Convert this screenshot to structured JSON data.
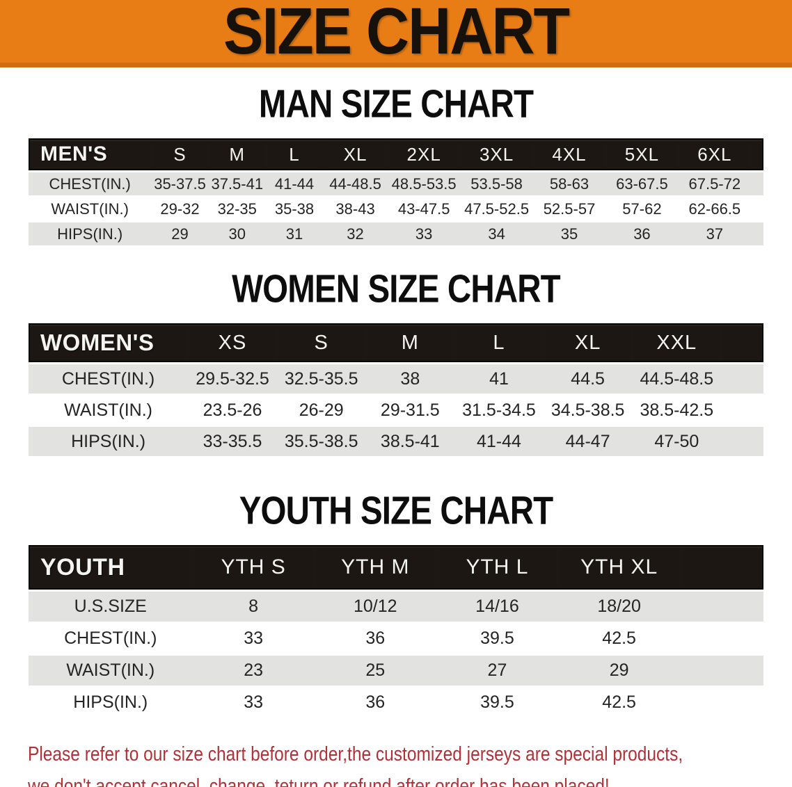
{
  "banner": {
    "title": "SIZE CHART"
  },
  "tables": {
    "men": {
      "title": "MAN SIZE CHART",
      "header": [
        "MEN'S",
        "S",
        "M",
        "L",
        "XL",
        "2XL",
        "3XL",
        "4XL",
        "5XL",
        "6XL"
      ],
      "rows": [
        [
          "CHEST(IN.)",
          "35-37.5",
          "37.5-41",
          "41-44",
          "44-48.5",
          "48.5-53.5",
          "53.5-58",
          "58-63",
          "63-67.5",
          "67.5-72"
        ],
        [
          "WAIST(IN.)",
          "29-32",
          "32-35",
          "35-38",
          "38-43",
          "43-47.5",
          "47.5-52.5",
          "52.5-57",
          "57-62",
          "62-66.5"
        ],
        [
          "HIPS(IN.)",
          "29",
          "30",
          "31",
          "32",
          "33",
          "34",
          "35",
          "36",
          "37"
        ]
      ]
    },
    "women": {
      "title": "WOMEN SIZE CHART",
      "header": [
        "WOMEN'S",
        "XS",
        "S",
        "M",
        "L",
        "XL",
        "XXL"
      ],
      "rows": [
        [
          "CHEST(IN.)",
          "29.5-32.5",
          "32.5-35.5",
          "38",
          "41",
          "44.5",
          "44.5-48.5"
        ],
        [
          "WAIST(IN.)",
          "23.5-26",
          "26-29",
          "29-31.5",
          "31.5-34.5",
          "34.5-38.5",
          "38.5-42.5"
        ],
        [
          "HIPS(IN.)",
          "33-35.5",
          "35.5-38.5",
          "38.5-41",
          "41-44",
          "44-47",
          "47-50"
        ]
      ]
    },
    "youth": {
      "title": "YOUTH SIZE CHART",
      "header": [
        "YOUTH",
        "YTH S",
        "YTH M",
        "YTH L",
        "YTH XL"
      ],
      "rows": [
        [
          "U.S.SIZE",
          "8",
          "10/12",
          "14/16",
          "18/20"
        ],
        [
          "CHEST(IN.)",
          "33",
          "36",
          "39.5",
          "42.5"
        ],
        [
          "WAIST(IN.)",
          "23",
          "25",
          "27",
          "29"
        ],
        [
          "HIPS(IN.)",
          "33",
          "36",
          "39.5",
          "42.5"
        ]
      ]
    }
  },
  "footer": {
    "line1": "Please refer to our size chart before order,the customized jerseys are special products,",
    "line2": "we don't accept cancel, change, teturn or refund after order has been placed!"
  },
  "colors": {
    "banner_orange": "#e87d15",
    "banner_edge_orange": "#cf6e10",
    "header_bar_black": "#1c1712",
    "row_gray": "#e2e2e0",
    "notice_red": "#b23137"
  }
}
